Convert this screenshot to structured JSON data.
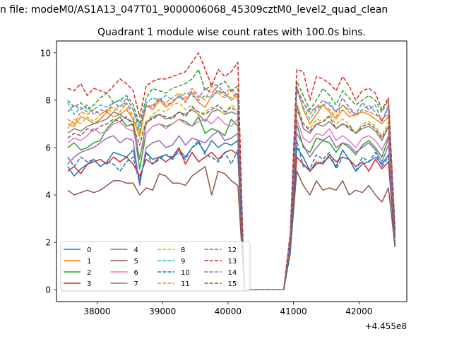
{
  "figure": {
    "suptitle": "n file: modeM0/AS1A13_047T01_9000006068_45309cztM0_level2_quad_clean",
    "offset_label": "+4.455e8"
  },
  "chart_data": {
    "type": "line",
    "title": "Quadrant 1 module wise count rates with 100.0s bins.",
    "xlabel": "",
    "ylabel": "",
    "x_offset": 445500000,
    "xlim": [
      37380,
      42730
    ],
    "ylim": [
      -0.5,
      10.5
    ],
    "xticks": [
      38000,
      39000,
      40000,
      41000,
      42000
    ],
    "yticks": [
      0,
      2,
      4,
      6,
      8,
      10
    ],
    "grid": false,
    "legend": {
      "placement": "lower-left",
      "columns": 4
    },
    "x": [
      37550,
      37650,
      37750,
      37850,
      37950,
      38050,
      38150,
      38250,
      38350,
      38450,
      38550,
      38650,
      38750,
      38850,
      38950,
      39050,
      39150,
      39250,
      39350,
      39450,
      39550,
      39650,
      39750,
      39850,
      39950,
      40050,
      40150,
      40250,
      40350,
      40450,
      40550,
      40650,
      40750,
      40850,
      40950,
      41050,
      41150,
      41250,
      41350,
      41450,
      41550,
      41650,
      41750,
      41850,
      41950,
      42050,
      42150,
      42250,
      42350,
      42450,
      42550
    ],
    "series": [
      {
        "name": "0",
        "color": "#1f77b4",
        "dash": "solid",
        "values": [
          5.2,
          4.8,
          5.1,
          5.3,
          5.5,
          5.2,
          5.4,
          5.8,
          5.7,
          5.6,
          5.9,
          4.6,
          5.8,
          5.5,
          5.6,
          5.7,
          5.5,
          5.9,
          5.6,
          6.0,
          6.2,
          5.8,
          6.3,
          6.0,
          6.2,
          6.1,
          6.3,
          0,
          0,
          0,
          0,
          0,
          0,
          0,
          1.6,
          6.0,
          5.6,
          5.0,
          5.3,
          5.4,
          5.6,
          5.2,
          5.9,
          5.5,
          5.0,
          5.3,
          5.4,
          5.6,
          5.3,
          5.7,
          1.9
        ]
      },
      {
        "name": "1",
        "color": "#ff7f0e",
        "dash": "solid",
        "values": [
          7.0,
          6.9,
          7.3,
          7.2,
          7.0,
          7.2,
          7.5,
          7.3,
          7.4,
          7.6,
          7.2,
          6.5,
          7.8,
          7.6,
          8.0,
          7.7,
          7.9,
          8.2,
          8.0,
          8.3,
          7.9,
          7.7,
          8.2,
          8.4,
          8.3,
          8.0,
          8.2,
          0,
          0,
          0,
          0,
          0,
          0,
          0,
          2.1,
          8.6,
          7.6,
          7.0,
          7.4,
          7.8,
          7.5,
          7.2,
          7.6,
          7.3,
          7.4,
          7.5,
          7.4,
          7.2,
          7.0,
          7.3,
          2.3
        ]
      },
      {
        "name": "2",
        "color": "#2ca02c",
        "dash": "solid",
        "values": [
          6.0,
          6.2,
          5.9,
          6.0,
          6.2,
          6.3,
          6.8,
          7.1,
          7.3,
          6.9,
          7.0,
          5.1,
          6.6,
          6.9,
          7.0,
          6.9,
          7.0,
          7.2,
          7.1,
          6.9,
          7.3,
          6.6,
          6.8,
          6.7,
          6.5,
          7.2,
          6.9,
          0,
          0,
          0,
          0,
          0,
          0,
          0,
          1.8,
          7.0,
          6.0,
          5.8,
          6.4,
          6.3,
          6.2,
          5.8,
          6.2,
          6.0,
          5.7,
          6.1,
          6.3,
          6.0,
          5.6,
          6.4,
          2.0
        ]
      },
      {
        "name": "3",
        "color": "#d62728",
        "dash": "solid",
        "values": [
          5.0,
          5.2,
          4.9,
          5.3,
          5.4,
          5.5,
          5.3,
          5.6,
          5.4,
          5.6,
          5.3,
          4.8,
          5.5,
          5.3,
          5.6,
          5.4,
          5.6,
          6.0,
          5.3,
          5.8,
          5.4,
          5.6,
          5.8,
          5.5,
          5.8,
          5.9,
          5.7,
          0,
          0,
          0,
          0,
          0,
          0,
          0,
          1.7,
          5.6,
          5.3,
          5.0,
          5.4,
          5.3,
          5.7,
          5.4,
          5.6,
          5.5,
          5.2,
          5.4,
          5.0,
          5.5,
          5.1,
          5.4,
          1.8
        ]
      },
      {
        "name": "4",
        "color": "#9467bd",
        "dash": "solid",
        "values": [
          5.3,
          5.6,
          5.8,
          5.9,
          6.0,
          6.2,
          6.4,
          6.5,
          6.2,
          6.4,
          6.3,
          4.4,
          6.0,
          6.2,
          6.3,
          6.0,
          6.1,
          6.5,
          6.1,
          6.4,
          6.3,
          6.2,
          6.5,
          6.7,
          6.3,
          6.4,
          6.6,
          0,
          0,
          0,
          0,
          0,
          0,
          0,
          1.8,
          6.6,
          6.1,
          5.6,
          6.0,
          6.3,
          6.5,
          6.0,
          6.2,
          6.1,
          5.8,
          6.0,
          6.2,
          5.9,
          5.4,
          6.1,
          1.9
        ]
      },
      {
        "name": "5",
        "color": "#8c564b",
        "dash": "solid",
        "values": [
          4.2,
          4.0,
          4.1,
          4.2,
          4.1,
          4.2,
          4.4,
          4.6,
          4.6,
          4.5,
          4.5,
          4.0,
          4.3,
          4.2,
          4.9,
          4.8,
          4.5,
          4.5,
          4.4,
          4.8,
          5.0,
          5.2,
          4.0,
          5.0,
          4.9,
          4.6,
          4.4,
          0,
          0,
          0,
          0,
          0,
          0,
          0,
          1.6,
          5.0,
          4.4,
          4.0,
          4.6,
          4.2,
          4.3,
          4.2,
          4.6,
          4.0,
          4.2,
          4.1,
          4.4,
          4.0,
          3.7,
          4.3,
          1.8
        ]
      },
      {
        "name": "6",
        "color": "#e377c2",
        "dash": "solid",
        "values": [
          6.2,
          6.4,
          6.3,
          6.5,
          6.8,
          6.6,
          6.7,
          7.0,
          7.1,
          6.8,
          6.7,
          5.6,
          6.6,
          6.9,
          7.0,
          6.8,
          7.0,
          7.2,
          7.0,
          6.9,
          7.1,
          7.2,
          7.0,
          7.3,
          7.0,
          6.9,
          7.2,
          0,
          0,
          0,
          0,
          0,
          0,
          0,
          1.9,
          7.2,
          6.4,
          6.2,
          6.6,
          6.5,
          6.8,
          6.3,
          6.5,
          6.3,
          6.0,
          6.4,
          6.5,
          6.3,
          5.9,
          6.5,
          2.0
        ]
      },
      {
        "name": "7",
        "color": "#7f7f7f",
        "dash": "solid",
        "values": [
          6.6,
          6.8,
          6.7,
          6.9,
          7.0,
          7.1,
          7.2,
          7.5,
          7.4,
          7.2,
          7.1,
          5.5,
          7.0,
          7.3,
          7.4,
          7.2,
          7.3,
          7.5,
          7.4,
          7.6,
          7.4,
          7.1,
          7.5,
          7.6,
          7.4,
          7.5,
          7.4,
          0,
          0,
          0,
          0,
          0,
          0,
          0,
          1.9,
          7.8,
          6.8,
          6.6,
          7.0,
          6.9,
          7.1,
          6.8,
          7.0,
          6.9,
          6.6,
          6.8,
          6.9,
          6.7,
          6.3,
          6.9,
          2.1
        ]
      },
      {
        "name": "8",
        "color": "#bcbd22",
        "dash": "dashed",
        "values": [
          6.8,
          7.2,
          7.0,
          7.3,
          7.1,
          7.4,
          7.6,
          7.5,
          7.8,
          7.7,
          7.2,
          6.4,
          7.1,
          7.4,
          7.6,
          7.5,
          7.8,
          7.9,
          7.6,
          7.8,
          7.3,
          7.5,
          7.7,
          7.6,
          7.4,
          7.8,
          7.6,
          0,
          0,
          0,
          0,
          0,
          0,
          0,
          2.0,
          7.9,
          7.0,
          6.8,
          7.2,
          7.1,
          7.4,
          7.0,
          7.2,
          7.0,
          6.6,
          7.0,
          7.1,
          6.9,
          6.5,
          7.1,
          2.1
        ]
      },
      {
        "name": "9",
        "color": "#17becf",
        "dash": "dashed",
        "values": [
          7.9,
          7.4,
          7.7,
          7.5,
          7.6,
          7.8,
          7.7,
          7.9,
          8.0,
          7.8,
          7.6,
          6.7,
          7.9,
          8.1,
          8.0,
          8.2,
          8.0,
          8.1,
          8.3,
          8.2,
          8.0,
          8.2,
          8.1,
          8.4,
          8.2,
          8.1,
          8.3,
          0,
          0,
          0,
          0,
          0,
          0,
          0,
          2.1,
          8.4,
          7.7,
          7.2,
          7.6,
          7.8,
          7.9,
          7.5,
          7.8,
          7.6,
          7.4,
          7.6,
          7.8,
          7.5,
          7.1,
          7.8,
          2.2
        ]
      },
      {
        "name": "10",
        "color": "#1f77b4",
        "dash": "dashed",
        "values": [
          5.6,
          5.2,
          5.6,
          5.4,
          5.5,
          5.2,
          5.4,
          5.3,
          5.0,
          5.4,
          5.6,
          4.5,
          5.8,
          5.3,
          5.5,
          5.7,
          5.6,
          5.8,
          5.5,
          6.0,
          6.3,
          5.7,
          5.6,
          5.4,
          5.8,
          5.3,
          5.9,
          0,
          0,
          0,
          0,
          0,
          0,
          0,
          1.5,
          6.3,
          5.2,
          5.1,
          5.7,
          5.5,
          5.8,
          5.1,
          5.6,
          5.5,
          5.0,
          5.6,
          5.4,
          5.8,
          5.2,
          5.6,
          1.9
        ]
      },
      {
        "name": "11",
        "color": "#ff7f0e",
        "dash": "dashed",
        "values": [
          7.2,
          7.0,
          7.5,
          7.4,
          7.6,
          7.4,
          7.6,
          7.7,
          7.5,
          7.9,
          7.3,
          6.6,
          7.7,
          7.8,
          8.0,
          7.9,
          8.1,
          8.3,
          8.1,
          8.5,
          8.2,
          8.0,
          8.6,
          8.3,
          8.1,
          8.4,
          8.0,
          0,
          0,
          0,
          0,
          0,
          0,
          0,
          2.2,
          8.4,
          7.9,
          7.4,
          7.7,
          7.8,
          7.6,
          7.3,
          7.8,
          7.5,
          7.3,
          7.6,
          7.5,
          7.4,
          7.2,
          7.4,
          2.4
        ]
      },
      {
        "name": "12",
        "color": "#2ca02c",
        "dash": "dashed",
        "values": [
          8.0,
          7.7,
          7.9,
          7.6,
          7.8,
          8.1,
          8.3,
          7.9,
          8.0,
          8.2,
          7.8,
          7.0,
          8.1,
          8.5,
          8.4,
          8.3,
          8.5,
          8.6,
          8.7,
          8.9,
          9.3,
          8.4,
          8.7,
          8.6,
          8.8,
          8.4,
          8.6,
          0,
          0,
          0,
          0,
          0,
          0,
          0,
          2.3,
          8.8,
          8.2,
          7.6,
          8.0,
          8.5,
          8.2,
          7.8,
          8.4,
          8.1,
          7.8,
          8.0,
          8.2,
          8.0,
          7.5,
          8.0,
          2.5
        ]
      },
      {
        "name": "13",
        "color": "#d62728",
        "dash": "dashed",
        "values": [
          8.5,
          8.4,
          8.7,
          8.2,
          8.5,
          8.4,
          8.3,
          8.6,
          8.9,
          8.7,
          8.4,
          7.3,
          8.6,
          8.8,
          8.9,
          8.9,
          9.0,
          9.1,
          9.2,
          9.6,
          10.0,
          9.3,
          8.6,
          9.3,
          9.0,
          9.2,
          9.6,
          0,
          0,
          0,
          0,
          0,
          0,
          0,
          2.4,
          9.3,
          9.2,
          8.0,
          9.0,
          8.9,
          8.7,
          8.4,
          9.0,
          8.6,
          8.0,
          8.4,
          8.5,
          8.3,
          7.6,
          8.1,
          2.6
        ]
      },
      {
        "name": "14",
        "color": "#9467bd",
        "dash": "dashed",
        "values": [
          7.5,
          7.8,
          7.6,
          7.8,
          7.4,
          7.6,
          7.5,
          7.9,
          7.7,
          8.1,
          7.6,
          6.9,
          7.8,
          7.7,
          8.1,
          7.8,
          7.9,
          8.2,
          7.9,
          8.4,
          8.1,
          8.5,
          8.3,
          8.6,
          8.3,
          8.5,
          8.2,
          0,
          0,
          0,
          0,
          0,
          0,
          0,
          2.2,
          8.5,
          7.9,
          7.5,
          7.7,
          8.0,
          7.8,
          7.5,
          8.1,
          7.7,
          7.4,
          7.9,
          7.6,
          7.8,
          7.1,
          7.7,
          2.3
        ]
      },
      {
        "name": "15",
        "color": "#8c564b",
        "dash": "dashed",
        "values": [
          6.4,
          6.6,
          6.5,
          6.8,
          6.7,
          6.9,
          7.0,
          7.2,
          7.1,
          7.3,
          6.9,
          6.1,
          7.1,
          7.2,
          7.4,
          7.3,
          7.2,
          7.5,
          7.3,
          7.7,
          7.5,
          7.4,
          7.6,
          7.8,
          7.5,
          7.7,
          7.5,
          0,
          0,
          0,
          0,
          0,
          0,
          0,
          1.9,
          7.6,
          7.0,
          6.7,
          7.0,
          7.1,
          7.3,
          6.8,
          7.0,
          6.8,
          6.6,
          6.9,
          7.0,
          6.8,
          6.4,
          6.9,
          2.2
        ]
      }
    ]
  }
}
